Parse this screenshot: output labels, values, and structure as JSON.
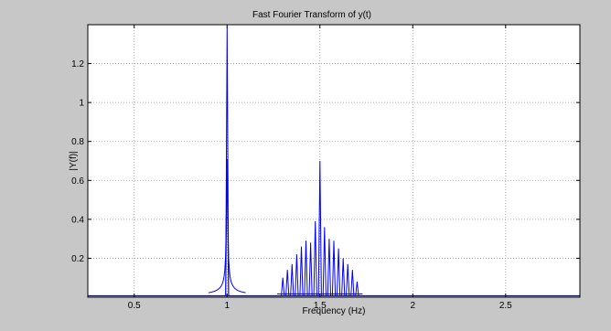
{
  "chart_data": {
    "type": "line",
    "title": "Fast Fourier Transform of y(t)",
    "xlabel": "Frequency (Hz)",
    "ylabel": "|Y(f)|",
    "xlim": [
      0.25,
      2.9
    ],
    "ylim": [
      0,
      1.4
    ],
    "xticks": [
      0.5,
      1,
      1.5,
      2,
      2.5
    ],
    "xtick_labels": [
      "0.5",
      "1",
      "1.5",
      "2",
      "2.5"
    ],
    "yticks": [
      0.2,
      0.4,
      0.6,
      0.8,
      1,
      1.2
    ],
    "ytick_labels": [
      "0.2",
      "0.4",
      "0.6",
      "0.8",
      "1",
      "1.2"
    ],
    "grid": true,
    "line_color": "#0000ff",
    "background_color": "#c7c7c7",
    "axes_color": "#ffffff",
    "noise_floor": 0.007,
    "peaks": [
      {
        "x": 1.0,
        "y": 1.39
      },
      {
        "x": 1.0,
        "y": 0.71
      },
      {
        "x": 1.3,
        "y": 0.1
      },
      {
        "x": 1.325,
        "y": 0.14
      },
      {
        "x": 1.35,
        "y": 0.17
      },
      {
        "x": 1.375,
        "y": 0.22
      },
      {
        "x": 1.4,
        "y": 0.26
      },
      {
        "x": 1.425,
        "y": 0.29
      },
      {
        "x": 1.45,
        "y": 0.28
      },
      {
        "x": 1.475,
        "y": 0.39
      },
      {
        "x": 1.5,
        "y": 0.7
      },
      {
        "x": 1.525,
        "y": 0.36
      },
      {
        "x": 1.55,
        "y": 0.3
      },
      {
        "x": 1.575,
        "y": 0.29
      },
      {
        "x": 1.6,
        "y": 0.25
      },
      {
        "x": 1.625,
        "y": 0.2
      },
      {
        "x": 1.65,
        "y": 0.17
      },
      {
        "x": 1.675,
        "y": 0.14
      },
      {
        "x": 1.7,
        "y": 0.08
      }
    ]
  }
}
